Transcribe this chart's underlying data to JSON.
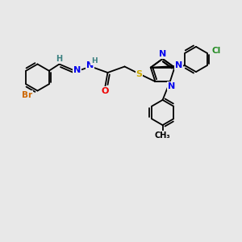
{
  "bg_color": "#e8e8e8",
  "atom_colors": {
    "C": "#000000",
    "H": "#3a8080",
    "N": "#0000ee",
    "O": "#ee0000",
    "S": "#ccaa00",
    "Br": "#cc6600",
    "Cl": "#228b22"
  },
  "bond_color": "#000000",
  "figsize": [
    3.0,
    3.0
  ],
  "dpi": 100
}
